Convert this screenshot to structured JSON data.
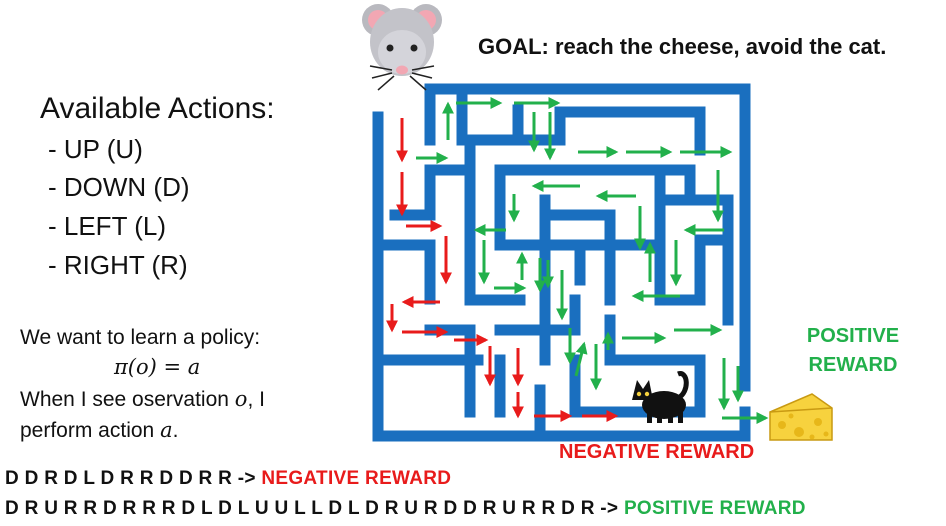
{
  "actions": {
    "title": "Available Actions:",
    "items": [
      "- UP (U)",
      "- DOWN (D)",
      "- LEFT (L)",
      "- RIGHT (R)"
    ]
  },
  "policy": {
    "line1": "We want to learn a policy:",
    "formula": "π(o) = a",
    "line3_text": "When I see oservation ",
    "line3_var": "o",
    "line3_end": ", I",
    "line4_text": "perform action ",
    "line4_var": "a",
    "line4_end": "."
  },
  "goal": "GOAL: reach the cheese, avoid the cat.",
  "labels": {
    "positive": "POSITIVE REWARD",
    "negative": "NEGATIVE REWARD"
  },
  "sequences": [
    {
      "moves": "D D R D L D R R D D R R ->",
      "result": "NEGATIVE REWARD",
      "outcome": "negative"
    },
    {
      "moves": "D R U R R D R R R D L D L U U L L D L D R U R D D R U R R D R ->",
      "result": "POSITIVE REWARD",
      "outcome": "positive"
    }
  ],
  "colors": {
    "maze_wall": "#1a6fbf",
    "path_negative": "#e81b1b",
    "path_positive": "#22b04b",
    "cheese": "#f7d23e"
  },
  "icons": [
    "mouse-icon",
    "cat-icon",
    "cheese-icon"
  ]
}
